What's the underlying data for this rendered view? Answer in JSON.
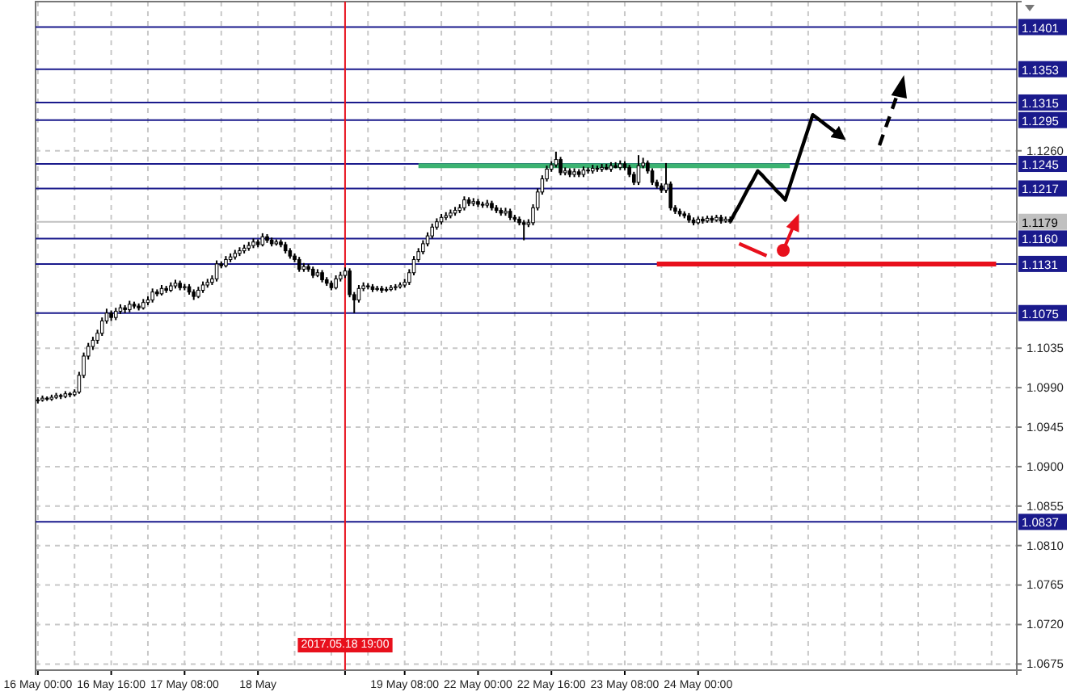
{
  "chart_data": {
    "type": "candlestick",
    "categories": [
      "16 May 00:00",
      null,
      null,
      null,
      null,
      null,
      null,
      null,
      null,
      null,
      null,
      null,
      null,
      null,
      null,
      null,
      "16 May 16:00",
      null,
      null,
      null,
      null,
      null,
      null,
      null,
      null,
      null,
      null,
      null,
      null,
      null,
      null,
      null,
      "17 May 08:00",
      null,
      null,
      null,
      null,
      null,
      null,
      null,
      null,
      null,
      null,
      null,
      null,
      null,
      null,
      null,
      "18 May",
      null,
      null,
      null,
      null,
      null,
      null,
      null,
      null,
      null,
      null,
      null,
      null,
      null,
      null,
      null,
      null,
      null,
      null,
      "2017.05.18 19:00",
      null,
      null,
      null,
      null,
      null,
      null,
      null,
      null,
      null,
      null,
      null,
      null,
      "19 May 08:00",
      null,
      null,
      null,
      null,
      null,
      null,
      null,
      null,
      null,
      null,
      null,
      null,
      null,
      null,
      null,
      "22 May 00:00",
      null,
      null,
      null,
      null,
      null,
      null,
      null,
      null,
      null,
      null,
      null,
      null,
      null,
      null,
      null,
      "22 May 16:00",
      null,
      null,
      null,
      null,
      null,
      null,
      null,
      null,
      null,
      null,
      null,
      null,
      null,
      null,
      null,
      "23 May 08:00",
      null,
      null,
      null,
      null,
      null,
      null,
      null,
      null,
      null,
      null,
      null,
      null,
      null,
      null,
      null,
      "24 May 00:00",
      null,
      null,
      null,
      null,
      null,
      null,
      null,
      null,
      null,
      null,
      null,
      null,
      null,
      null,
      null,
      null,
      null,
      null,
      null,
      null,
      null,
      null,
      null,
      null,
      null,
      null,
      null,
      null,
      null,
      null,
      null,
      null,
      null,
      null,
      null,
      null,
      null,
      null,
      null,
      null,
      null,
      null,
      null,
      null,
      null,
      null,
      null,
      null,
      null,
      null,
      null,
      null,
      null,
      null,
      null,
      null,
      null,
      null,
      null,
      null,
      null,
      null,
      null,
      null,
      null,
      null,
      null,
      null,
      null
    ],
    "ohlc": [
      [
        1.0975,
        1.0979,
        1.0972,
        1.0976
      ],
      [
        1.0976,
        1.0981,
        1.0974,
        1.0978
      ],
      [
        1.0978,
        1.098,
        1.0975,
        1.0977
      ],
      [
        1.0977,
        1.0982,
        1.0975,
        1.0979
      ],
      [
        1.0979,
        1.0984,
        1.0977,
        1.0981
      ],
      [
        1.0981,
        1.0983,
        1.0977,
        1.098
      ],
      [
        1.098,
        1.0986,
        1.0978,
        1.0983
      ],
      [
        1.0983,
        1.0985,
        1.0979,
        1.0982
      ],
      [
        1.0982,
        1.0988,
        1.098,
        1.0985
      ],
      [
        1.0985,
        1.1008,
        1.0983,
        1.1004
      ],
      [
        1.1004,
        1.103,
        1.1001,
        1.1026
      ],
      [
        1.1026,
        1.1041,
        1.1022,
        1.1037
      ],
      [
        1.1037,
        1.1048,
        1.1033,
        1.1044
      ],
      [
        1.1044,
        1.1056,
        1.104,
        1.1052
      ],
      [
        1.1052,
        1.107,
        1.1049,
        1.1066
      ],
      [
        1.1066,
        1.108,
        1.1063,
        1.1075
      ],
      [
        1.1075,
        1.1078,
        1.1066,
        1.107
      ],
      [
        1.107,
        1.1081,
        1.1067,
        1.1077
      ],
      [
        1.1077,
        1.1085,
        1.1074,
        1.1081
      ],
      [
        1.1081,
        1.1084,
        1.1075,
        1.1079
      ],
      [
        1.1079,
        1.1089,
        1.1076,
        1.1085
      ],
      [
        1.1085,
        1.1088,
        1.108,
        1.1083
      ],
      [
        1.1083,
        1.1086,
        1.1078,
        1.1081
      ],
      [
        1.1081,
        1.1091,
        1.1079,
        1.1087
      ],
      [
        1.1087,
        1.1094,
        1.1084,
        1.109
      ],
      [
        1.109,
        1.1103,
        1.1087,
        1.1099
      ],
      [
        1.1099,
        1.1102,
        1.1094,
        1.1097
      ],
      [
        1.1097,
        1.1107,
        1.1095,
        1.1103
      ],
      [
        1.1103,
        1.1106,
        1.1098,
        1.1101
      ],
      [
        1.1101,
        1.111,
        1.1099,
        1.1106
      ],
      [
        1.1106,
        1.1113,
        1.1103,
        1.1109
      ],
      [
        1.1109,
        1.1112,
        1.1101,
        1.1104
      ],
      [
        1.1104,
        1.1108,
        1.1101,
        1.1105
      ],
      [
        1.1105,
        1.1108,
        1.1096,
        1.1099
      ],
      [
        1.1099,
        1.1102,
        1.109,
        1.1094
      ],
      [
        1.1094,
        1.1105,
        1.1092,
        1.1101
      ],
      [
        1.1101,
        1.1111,
        1.1098,
        1.1107
      ],
      [
        1.1107,
        1.1114,
        1.1104,
        1.111
      ],
      [
        1.111,
        1.1118,
        1.1107,
        1.1114
      ],
      [
        1.1114,
        1.1135,
        1.1111,
        1.1131
      ],
      [
        1.1131,
        1.1134,
        1.1126,
        1.1129
      ],
      [
        1.1129,
        1.114,
        1.1127,
        1.1136
      ],
      [
        1.1136,
        1.1143,
        1.1133,
        1.1139
      ],
      [
        1.1139,
        1.1147,
        1.1136,
        1.1143
      ],
      [
        1.1143,
        1.115,
        1.114,
        1.1146
      ],
      [
        1.1146,
        1.1153,
        1.1143,
        1.1149
      ],
      [
        1.1149,
        1.1156,
        1.1146,
        1.1152
      ],
      [
        1.1152,
        1.116,
        1.1149,
        1.1156
      ],
      [
        1.1156,
        1.1159,
        1.115,
        1.1153
      ],
      [
        1.1153,
        1.1166,
        1.1151,
        1.1162
      ],
      [
        1.1162,
        1.1165,
        1.1155,
        1.1158
      ],
      [
        1.1158,
        1.1161,
        1.1151,
        1.1154
      ],
      [
        1.1154,
        1.1159,
        1.1152,
        1.1156
      ],
      [
        1.1156,
        1.1159,
        1.115,
        1.1153
      ],
      [
        1.1153,
        1.1156,
        1.1143,
        1.1146
      ],
      [
        1.1146,
        1.1149,
        1.1137,
        1.114
      ],
      [
        1.114,
        1.1143,
        1.1133,
        1.1136
      ],
      [
        1.1136,
        1.1139,
        1.1122,
        1.1125
      ],
      [
        1.1125,
        1.1132,
        1.1122,
        1.1128
      ],
      [
        1.1128,
        1.1131,
        1.1122,
        1.1125
      ],
      [
        1.1125,
        1.1128,
        1.1115,
        1.1118
      ],
      [
        1.1118,
        1.1125,
        1.1116,
        1.1121
      ],
      [
        1.1121,
        1.1124,
        1.111,
        1.1113
      ],
      [
        1.1113,
        1.1116,
        1.1106,
        1.1109
      ],
      [
        1.1109,
        1.1112,
        1.1101,
        1.1104
      ],
      [
        1.1104,
        1.1118,
        1.1102,
        1.1114
      ],
      [
        1.1114,
        1.1122,
        1.1111,
        1.1118
      ],
      [
        1.1118,
        1.1127,
        1.1115,
        1.1123
      ],
      [
        1.1123,
        1.1126,
        1.1093,
        1.1096
      ],
      [
        1.1096,
        1.1099,
        1.1075,
        1.109
      ],
      [
        1.109,
        1.1107,
        1.1087,
        1.1103
      ],
      [
        1.1103,
        1.111,
        1.11,
        1.1106
      ],
      [
        1.1106,
        1.1109,
        1.1102,
        1.1105
      ],
      [
        1.1105,
        1.1108,
        1.1099,
        1.1102
      ],
      [
        1.1102,
        1.1106,
        1.11,
        1.1103
      ],
      [
        1.1103,
        1.1106,
        1.1098,
        1.1101
      ],
      [
        1.1101,
        1.1105,
        1.1099,
        1.1102
      ],
      [
        1.1102,
        1.1107,
        1.11,
        1.1104
      ],
      [
        1.1104,
        1.1108,
        1.1101,
        1.1105
      ],
      [
        1.1105,
        1.111,
        1.1103,
        1.1107
      ],
      [
        1.1107,
        1.1114,
        1.1104,
        1.111
      ],
      [
        1.111,
        1.1125,
        1.1107,
        1.1121
      ],
      [
        1.1121,
        1.114,
        1.1118,
        1.1136
      ],
      [
        1.1136,
        1.1149,
        1.1133,
        1.1145
      ],
      [
        1.1145,
        1.1158,
        1.1142,
        1.1154
      ],
      [
        1.1154,
        1.1167,
        1.1151,
        1.1163
      ],
      [
        1.1163,
        1.1177,
        1.116,
        1.1173
      ],
      [
        1.1173,
        1.1183,
        1.117,
        1.1179
      ],
      [
        1.1179,
        1.1188,
        1.1176,
        1.1184
      ],
      [
        1.1184,
        1.119,
        1.1181,
        1.1186
      ],
      [
        1.1186,
        1.1193,
        1.1183,
        1.1189
      ],
      [
        1.1189,
        1.1196,
        1.1186,
        1.1192
      ],
      [
        1.1192,
        1.1199,
        1.1189,
        1.1195
      ],
      [
        1.1195,
        1.1208,
        1.1192,
        1.1204
      ],
      [
        1.1204,
        1.1207,
        1.1197,
        1.12
      ],
      [
        1.12,
        1.1206,
        1.1197,
        1.1202
      ],
      [
        1.1202,
        1.1205,
        1.1196,
        1.1199
      ],
      [
        1.1199,
        1.1202,
        1.1195,
        1.1198
      ],
      [
        1.1198,
        1.1204,
        1.1195,
        1.12
      ],
      [
        1.12,
        1.1203,
        1.1192,
        1.1195
      ],
      [
        1.1195,
        1.1198,
        1.1189,
        1.1192
      ],
      [
        1.1192,
        1.1195,
        1.1186,
        1.1189
      ],
      [
        1.1189,
        1.1195,
        1.1186,
        1.1191
      ],
      [
        1.1191,
        1.1194,
        1.1181,
        1.1184
      ],
      [
        1.1184,
        1.1187,
        1.1179,
        1.1182
      ],
      [
        1.1182,
        1.1185,
        1.1175,
        1.1178
      ],
      [
        1.1178,
        1.1181,
        1.1158,
        1.1176
      ],
      [
        1.1176,
        1.1182,
        1.1173,
        1.1178
      ],
      [
        1.1178,
        1.1199,
        1.1175,
        1.1195
      ],
      [
        1.1195,
        1.1217,
        1.1192,
        1.1213
      ],
      [
        1.1213,
        1.1232,
        1.121,
        1.1228
      ],
      [
        1.1228,
        1.1243,
        1.1225,
        1.1239
      ],
      [
        1.1239,
        1.1248,
        1.1236,
        1.1244
      ],
      [
        1.1244,
        1.1259,
        1.1241,
        1.125
      ],
      [
        1.125,
        1.1253,
        1.1232,
        1.1235
      ],
      [
        1.1235,
        1.1241,
        1.1232,
        1.1237
      ],
      [
        1.1237,
        1.124,
        1.123,
        1.1233
      ],
      [
        1.1233,
        1.124,
        1.123,
        1.1236
      ],
      [
        1.1236,
        1.1239,
        1.123,
        1.1233
      ],
      [
        1.1233,
        1.1242,
        1.123,
        1.1238
      ],
      [
        1.1238,
        1.1241,
        1.1234,
        1.1237
      ],
      [
        1.1237,
        1.1244,
        1.1234,
        1.124
      ],
      [
        1.124,
        1.1243,
        1.1236,
        1.1239
      ],
      [
        1.1239,
        1.1245,
        1.1236,
        1.1241
      ],
      [
        1.1241,
        1.1245,
        1.1238,
        1.1239
      ],
      [
        1.1239,
        1.1247,
        1.1236,
        1.1243
      ],
      [
        1.1243,
        1.1247,
        1.124,
        1.1241
      ],
      [
        1.1241,
        1.1249,
        1.1238,
        1.1245
      ],
      [
        1.1245,
        1.1248,
        1.1238,
        1.1241
      ],
      [
        1.1241,
        1.1244,
        1.123,
        1.1233
      ],
      [
        1.1233,
        1.1236,
        1.1221,
        1.1224
      ],
      [
        1.1224,
        1.1255,
        1.1221,
        1.1243
      ],
      [
        1.1243,
        1.1252,
        1.124,
        1.1246
      ],
      [
        1.1246,
        1.1249,
        1.1234,
        1.1237
      ],
      [
        1.1237,
        1.124,
        1.1221,
        1.1224
      ],
      [
        1.1224,
        1.1227,
        1.1217,
        1.122
      ],
      [
        1.122,
        1.1223,
        1.1212,
        1.1215
      ],
      [
        1.1215,
        1.1246,
        1.1212,
        1.1222
      ],
      [
        1.1222,
        1.1225,
        1.1192,
        1.1195
      ],
      [
        1.1195,
        1.1198,
        1.1188,
        1.1191
      ],
      [
        1.1191,
        1.1194,
        1.1185,
        1.1188
      ],
      [
        1.1188,
        1.1191,
        1.1183,
        1.1186
      ],
      [
        1.1186,
        1.1189,
        1.1178,
        1.1181
      ],
      [
        1.1181,
        1.1184,
        1.1175,
        1.1178
      ],
      [
        1.1178,
        1.1185,
        1.1176,
        1.1182
      ],
      [
        1.1182,
        1.1185,
        1.1177,
        1.118
      ],
      [
        1.118,
        1.1186,
        1.1178,
        1.1183
      ],
      [
        1.1183,
        1.1186,
        1.1178,
        1.1181
      ],
      [
        1.1181,
        1.1187,
        1.1179,
        1.1184
      ],
      [
        1.1184,
        1.1187,
        1.1177,
        1.118
      ],
      [
        1.118,
        1.1185,
        1.1178,
        1.1182
      ],
      [
        1.1182,
        1.1185,
        1.1177,
        1.1179
      ],
      null,
      null,
      null,
      null,
      null,
      null,
      null,
      null,
      null,
      null,
      null,
      null,
      null,
      null,
      null,
      null,
      null,
      null,
      null,
      null,
      null,
      null,
      null,
      null,
      null,
      null,
      null,
      null,
      null,
      null,
      null,
      null,
      null,
      null,
      null,
      null,
      null,
      null,
      null,
      null,
      null,
      null,
      null,
      null,
      null,
      null,
      null,
      null,
      null,
      null,
      null,
      null,
      null,
      null,
      null,
      null,
      null,
      null,
      null,
      null,
      null,
      null
    ],
    "series": [
      {
        "type": "line",
        "color": "#3cb371",
        "values": [
          null,
          null,
          null,
          null,
          null,
          null,
          null,
          null,
          null,
          null,
          null,
          null,
          null,
          null,
          null,
          null,
          null,
          null,
          null,
          null,
          null,
          null,
          null,
          null,
          null,
          null,
          null,
          null,
          null,
          null,
          null,
          null,
          null,
          null,
          null,
          null,
          null,
          null,
          null,
          null,
          null,
          null,
          null,
          null,
          null,
          null,
          null,
          null,
          null,
          null,
          null,
          null,
          null,
          null,
          null,
          null,
          null,
          null,
          null,
          null,
          null,
          null,
          null,
          null,
          null,
          null,
          null,
          null,
          null,
          null,
          null,
          null,
          null,
          null,
          null,
          null,
          null,
          null,
          null,
          null,
          null,
          null,
          null,
          1.1243,
          1.1243,
          1.1243,
          1.1243,
          1.1243,
          1.1243,
          1.1243,
          1.1243,
          1.1243,
          1.1243,
          1.1243,
          1.1243,
          1.1243,
          1.1243,
          1.1243,
          1.1243,
          1.1243,
          1.1243,
          1.1243,
          1.1243,
          1.1243,
          1.1243,
          1.1243,
          1.1243,
          1.1243,
          1.1243,
          1.1243,
          1.1243,
          1.1243,
          1.1243,
          1.1243,
          1.1243,
          1.1243,
          1.1243,
          1.1243,
          1.1243,
          1.1243,
          1.1243,
          1.1243,
          1.1243,
          1.1243,
          1.1243,
          1.1243,
          1.1243,
          1.1243,
          1.1243,
          1.1243,
          1.1243,
          1.1243,
          1.1243,
          1.1243,
          1.1243,
          1.1243,
          1.1243,
          1.1243,
          1.1243,
          1.1243,
          1.1243,
          1.1243,
          1.1243,
          1.1243,
          1.1243,
          1.1243,
          1.1243,
          1.1243,
          1.1243,
          1.1243,
          1.1243,
          1.1243,
          1.1243,
          1.1243,
          1.1243,
          1.1243,
          1.1243,
          1.1243,
          1.1243,
          1.1243,
          1.1243,
          1.1243,
          1.1243,
          1.1243,
          1.1243,
          null,
          null,
          null,
          null,
          null,
          null,
          null,
          null,
          null,
          null,
          null,
          null,
          null,
          null,
          null,
          null,
          null,
          null,
          null,
          null,
          null,
          null,
          null,
          null,
          null,
          null,
          null,
          null,
          null,
          null,
          null,
          null,
          null,
          null,
          null,
          null,
          null,
          null,
          null,
          null,
          null,
          null,
          null,
          null,
          null,
          null,
          null,
          null,
          null
        ]
      },
      {
        "type": "line",
        "color": "#000000",
        "values": [
          null,
          null,
          null,
          null,
          null,
          null,
          null,
          null,
          null,
          null,
          null,
          null,
          null,
          null,
          null,
          null,
          null,
          null,
          null,
          null,
          null,
          null,
          null,
          null,
          null,
          null,
          null,
          null,
          null,
          null,
          null,
          null,
          null,
          null,
          null,
          null,
          null,
          null,
          null,
          null,
          null,
          null,
          null,
          null,
          null,
          null,
          null,
          null,
          null,
          null,
          null,
          null,
          null,
          null,
          null,
          null,
          null,
          null,
          null,
          null,
          null,
          null,
          null,
          null,
          null,
          null,
          null,
          null,
          null,
          null,
          null,
          null,
          null,
          null,
          null,
          null,
          null,
          null,
          null,
          null,
          null,
          null,
          null,
          null,
          null,
          null,
          null,
          null,
          null,
          null,
          null,
          null,
          null,
          null,
          null,
          null,
          null,
          null,
          null,
          null,
          null,
          null,
          null,
          null,
          null,
          null,
          null,
          null,
          null,
          null,
          null,
          null,
          null,
          null,
          null,
          null,
          null,
          null,
          null,
          null,
          null,
          null,
          null,
          null,
          null,
          null,
          null,
          null,
          null,
          null,
          null,
          null,
          null,
          null,
          null,
          null,
          null,
          null,
          null,
          null,
          null,
          null,
          null,
          null,
          null,
          null,
          null,
          null,
          null,
          null,
          null,
          1.1179,
          1.1189,
          1.1198,
          1.1208,
          1.1218,
          1.1227,
          1.1237,
          1.1232,
          1.1226,
          1.1221,
          1.1215,
          1.121,
          1.1204,
          1.122,
          1.1236,
          1.1253,
          1.1269,
          1.1285,
          1.1301,
          1.1297,
          1.1293,
          1.1289,
          1.1285,
          1.1281,
          1.1277,
          null,
          null,
          null,
          null,
          null,
          null,
          null,
          null,
          null,
          null,
          null,
          null,
          null,
          null,
          null,
          null,
          null,
          null,
          null,
          null,
          null,
          null,
          null,
          null,
          null,
          null,
          null,
          null,
          null,
          null,
          null,
          null,
          null,
          null,
          null,
          null,
          null,
          null
        ]
      },
      {
        "type": "line",
        "color": "#e8101c",
        "values": [
          null,
          null,
          null,
          null,
          null,
          null,
          null,
          null,
          null,
          null,
          null,
          null,
          null,
          null,
          null,
          null,
          null,
          null,
          null,
          null,
          null,
          null,
          null,
          null,
          null,
          null,
          null,
          null,
          null,
          null,
          null,
          null,
          null,
          null,
          null,
          null,
          null,
          null,
          null,
          null,
          null,
          null,
          null,
          null,
          null,
          null,
          null,
          null,
          null,
          null,
          null,
          null,
          null,
          null,
          null,
          null,
          null,
          null,
          null,
          null,
          null,
          null,
          null,
          null,
          null,
          null,
          null,
          null,
          null,
          null,
          null,
          null,
          null,
          null,
          null,
          null,
          null,
          null,
          null,
          null,
          null,
          null,
          null,
          null,
          null,
          null,
          null,
          null,
          null,
          null,
          null,
          null,
          null,
          null,
          null,
          null,
          null,
          null,
          null,
          null,
          null,
          null,
          null,
          null,
          null,
          null,
          null,
          null,
          null,
          null,
          null,
          null,
          null,
          null,
          null,
          null,
          null,
          null,
          null,
          null,
          null,
          null,
          null,
          null,
          null,
          null,
          null,
          null,
          null,
          null,
          null,
          null,
          null,
          null,
          null,
          1.1131,
          1.1131,
          1.1131,
          1.1131,
          1.1131,
          1.1131,
          1.1131,
          1.1131,
          1.1131,
          1.1131,
          1.1131,
          1.1131,
          1.1131,
          1.1131,
          1.1131,
          1.1131,
          1.1131,
          1.1131,
          1.1131,
          1.1131,
          1.1131,
          1.1131,
          1.1131,
          1.1131,
          1.1131,
          1.1131,
          1.1131,
          1.1131,
          1.1131,
          1.1131,
          1.1131,
          1.1131,
          1.1131,
          1.1131,
          1.1131,
          1.1131,
          1.1131,
          1.1131,
          1.1131,
          1.1131,
          1.1131,
          1.1131,
          1.1131,
          1.1131,
          1.1131,
          1.1131,
          1.1131,
          1.1131,
          1.1131,
          1.1131,
          1.1131,
          1.1131,
          1.1131,
          1.1131,
          1.1131,
          1.1131,
          1.1131,
          1.1131,
          1.1131,
          1.1131,
          1.1131,
          1.1131,
          1.1131,
          1.1131,
          1.1131,
          1.1131,
          1.1131,
          1.1131,
          1.1131,
          1.1131,
          1.1131,
          1.1131,
          1.1131,
          1.1131,
          1.1131,
          null,
          null,
          null,
          null
        ]
      }
    ],
    "ylim": [
      1.0668,
      1.143
    ],
    "yticks": [
      {
        "value": 1.0675,
        "label": "1.0675"
      },
      {
        "value": 1.072,
        "label": "1.0720"
      },
      {
        "value": 1.0765,
        "label": "1.0765"
      },
      {
        "value": 1.081,
        "label": "1.0810"
      },
      {
        "value": 1.0855,
        "label": "1.0855"
      },
      {
        "value": 1.09,
        "label": "1.0900"
      },
      {
        "value": 1.0945,
        "label": "1.0945"
      },
      {
        "value": 1.099,
        "label": "1.0990"
      },
      {
        "value": 1.1035,
        "label": "1.1035"
      },
      {
        "value": 1.126,
        "label": "1.1260"
      }
    ],
    "grid": true,
    "ref_lines": [
      {
        "axis": "y",
        "value": 1.1401,
        "label": "1.1401",
        "color": "#1a1a8c"
      },
      {
        "axis": "y",
        "value": 1.1353,
        "label": "1.1353",
        "color": "#1a1a8c"
      },
      {
        "axis": "y",
        "value": 1.1315,
        "label": "1.1315",
        "color": "#1a1a8c"
      },
      {
        "axis": "y",
        "value": 1.1295,
        "label": "1.1295",
        "color": "#1a1a8c"
      },
      {
        "axis": "y",
        "value": 1.1245,
        "label": "1.1245",
        "color": "#1a1a8c"
      },
      {
        "axis": "y",
        "value": 1.1217,
        "label": "1.1217",
        "color": "#1a1a8c"
      },
      {
        "axis": "y",
        "value": 1.1179,
        "label": "1.1179",
        "color": "#c0c0c0"
      },
      {
        "axis": "y",
        "value": 1.116,
        "label": "1.1160",
        "color": "#1a1a8c"
      },
      {
        "axis": "y",
        "value": 1.1131,
        "label": "1.1131",
        "color": "#1a1a8c"
      },
      {
        "axis": "y",
        "value": 1.1075,
        "label": "1.1075",
        "color": "#1a1a8c"
      },
      {
        "axis": "y",
        "value": 1.0837,
        "label": "1.0837",
        "color": "#1a1a8c"
      },
      {
        "axis": "x",
        "value": "2017.05.18 19:00",
        "color": "#e8101c"
      }
    ]
  }
}
